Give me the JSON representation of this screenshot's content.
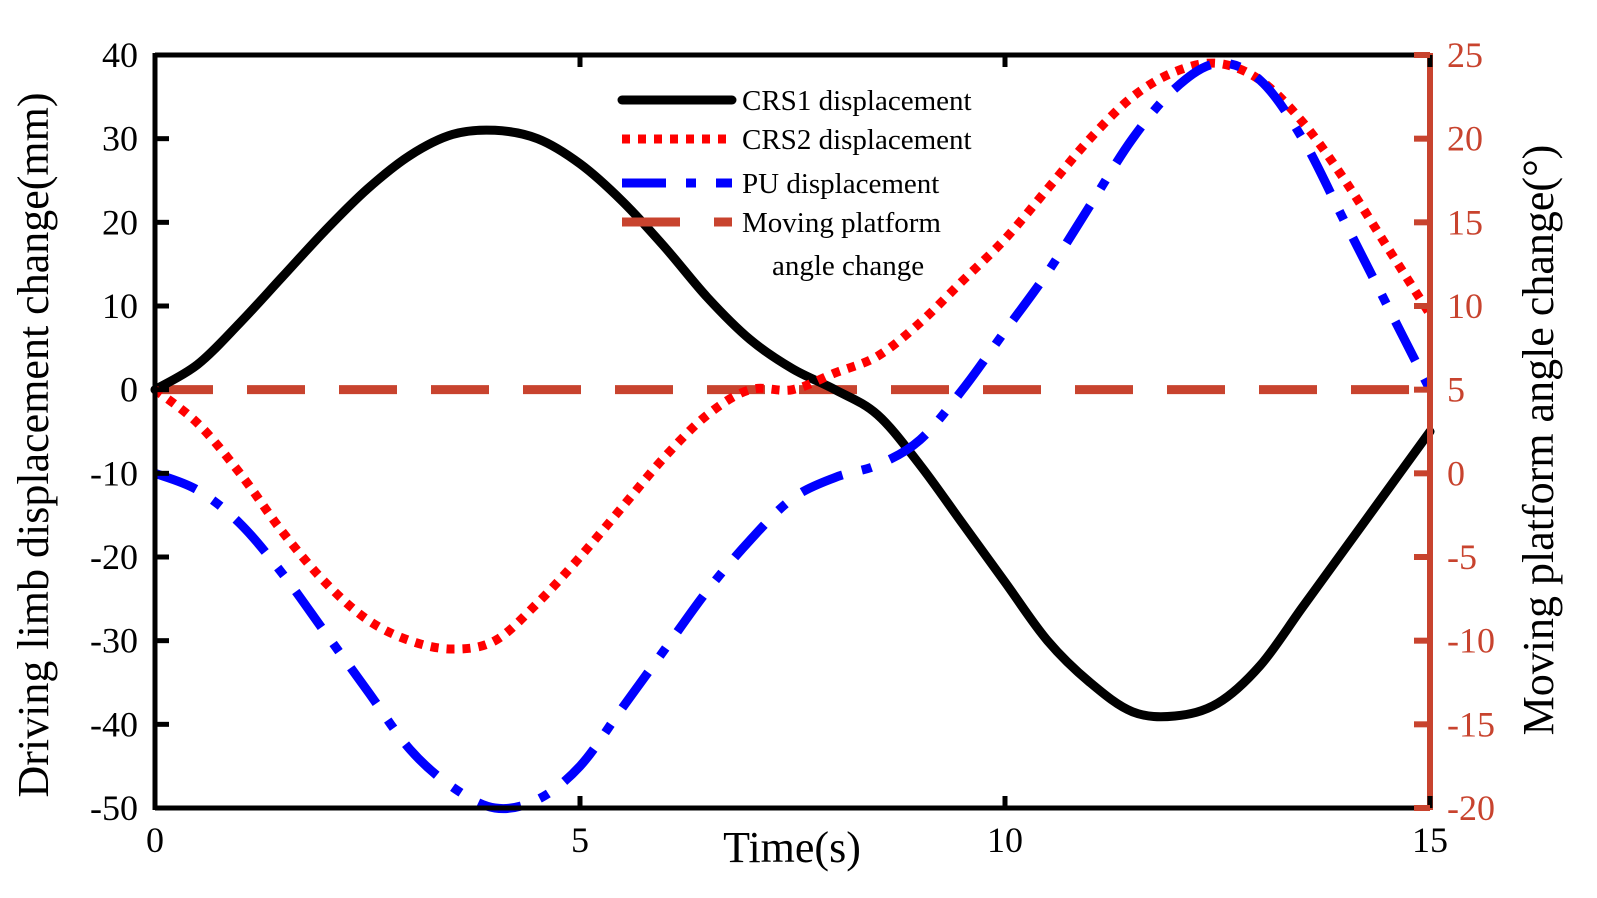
{
  "chart_data": {
    "type": "line",
    "title": "",
    "xlabel": "Time(s)",
    "ylabel_left": "Driving limb displacement change(mm)",
    "ylabel_right": "Moving platform angle change(°)",
    "xlim": [
      0,
      15
    ],
    "ylim_left": [
      -50,
      40
    ],
    "ylim_right": [
      -20,
      25
    ],
    "xticks": [
      0,
      5,
      10,
      15
    ],
    "yticks_left": [
      40,
      30,
      20,
      10,
      0,
      -10,
      -20,
      -30,
      -40,
      -50
    ],
    "yticks_right": [
      25,
      20,
      15,
      10,
      5,
      0,
      -5,
      -10,
      -15,
      -20
    ],
    "grid": false,
    "legend_position": "top-center",
    "colors": {
      "crs1": "#000000",
      "crs2": "#ff0000",
      "pu": "#0000ff",
      "angle": "#c8432e",
      "right_axis": "#c8432e"
    },
    "x": [
      0,
      0.5,
      1,
      1.5,
      2,
      2.5,
      3,
      3.5,
      4,
      4.5,
      5,
      5.5,
      6,
      6.5,
      7,
      7.5,
      8,
      8.5,
      9,
      9.5,
      10,
      10.5,
      11,
      11.5,
      12,
      12.5,
      13,
      13.5,
      14,
      14.5,
      15
    ],
    "series": [
      {
        "name": "CRS1 displacement",
        "axis": "left",
        "style": "solid",
        "values": [
          0,
          3,
          8,
          13.5,
          19,
          24,
          28,
          30.5,
          31,
          30,
          27,
          22.5,
          17,
          11,
          6,
          2.5,
          0,
          -3,
          -9,
          -16,
          -23,
          -30,
          -35,
          -38.5,
          -39,
          -37.5,
          -33,
          -26,
          -19,
          -12,
          -5
        ]
      },
      {
        "name": "CRS2 displacement",
        "axis": "left",
        "style": "dotted",
        "values": [
          0,
          -4,
          -10,
          -17,
          -23,
          -27.5,
          -30,
          -31,
          -30,
          -25.5,
          -20,
          -14,
          -8,
          -3,
          0,
          0,
          2,
          4,
          8,
          13,
          18,
          24,
          30,
          35,
          38,
          39,
          37,
          32,
          25,
          17,
          9
        ]
      },
      {
        "name": "PU displacement",
        "axis": "left",
        "style": "dashdot",
        "values": [
          -10,
          -12,
          -16,
          -22,
          -29,
          -36,
          -43,
          -47.5,
          -50,
          -49,
          -45,
          -38,
          -31,
          -24,
          -18,
          -13,
          -10.5,
          -9,
          -6,
          0,
          7,
          14,
          22,
          30,
          36,
          39,
          37,
          30,
          20,
          10,
          0
        ]
      },
      {
        "name": "Moving platform angle change",
        "axis": "right",
        "style": "dashed",
        "values": [
          5,
          5,
          5,
          5,
          5,
          5,
          5,
          5,
          5,
          5,
          5,
          5,
          5,
          5,
          5,
          5,
          5,
          5,
          5,
          5,
          5,
          5,
          5,
          5,
          5,
          5,
          5,
          5,
          5,
          5,
          5
        ]
      }
    ],
    "legend": [
      {
        "label": "CRS1 displacement"
      },
      {
        "label": "CRS2 displacement"
      },
      {
        "label": "PU displacement"
      },
      {
        "label": "Moving platform"
      },
      {
        "label": "angle change"
      }
    ]
  }
}
